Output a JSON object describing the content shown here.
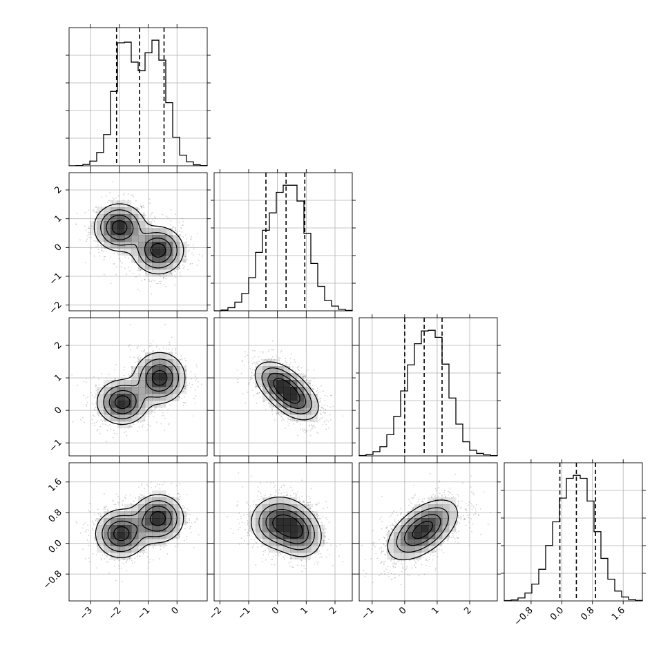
{
  "chart_data": {
    "type": "corner",
    "parameters": [
      {
        "id": "p0",
        "range": [
          -3.75,
          1.05
        ],
        "ticks": [
          "−3",
          "−2",
          "−1",
          "0"
        ],
        "tick_values": [
          -3,
          -2,
          -1,
          0
        ],
        "quantiles": [
          -2.1,
          -1.3,
          -0.45
        ],
        "hist_bins": {
          "start": -3.75,
          "width": 0.24,
          "counts": [
            1,
            4,
            20,
            70,
            200,
            470,
            1120,
            1850,
            1860,
            1560,
            1430,
            1700,
            1890,
            1590,
            950,
            430,
            160,
            60,
            15,
            3
          ]
        }
      },
      {
        "id": "p1",
        "range": [
          -2.2,
          2.6
        ],
        "ticks": [
          "−2",
          "−1",
          "0",
          "1",
          "2"
        ],
        "tick_values": [
          -2,
          -1,
          0,
          1,
          2
        ],
        "quantiles": [
          -0.4,
          0.3,
          0.95
        ],
        "hist_bins": {
          "start": -2.2,
          "width": 0.24,
          "counts": [
            0,
            10,
            40,
            110,
            220,
            420,
            740,
            1020,
            1240,
            1500,
            1590,
            1590,
            1390,
            980,
            600,
            310,
            130,
            60,
            20,
            5
          ]
        }
      },
      {
        "id": "p2",
        "range": [
          -1.4,
          2.85
        ],
        "ticks": [
          "−1",
          "0",
          "1",
          "2"
        ],
        "tick_values": [
          -1,
          0,
          1,
          2
        ],
        "quantiles": [
          0.0,
          0.6,
          1.15
        ],
        "hist_bins": {
          "start": -1.4,
          "width": 0.2125,
          "counts": [
            5,
            20,
            60,
            130,
            300,
            560,
            920,
            1290,
            1590,
            1770,
            1780,
            1680,
            1300,
            820,
            450,
            200,
            80,
            35,
            15,
            3
          ]
        }
      },
      {
        "id": "p3",
        "range": [
          -1.5,
          2.1
        ],
        "ticks": [
          "−0.8",
          "0.0",
          "0.8",
          "1.6"
        ],
        "tick_values": [
          -0.8,
          0.0,
          0.8,
          1.6
        ],
        "quantiles": [
          -0.05,
          0.38,
          0.88
        ],
        "hist_bins": {
          "start": -1.5,
          "width": 0.18,
          "counts": [
            3,
            10,
            30,
            80,
            170,
            320,
            560,
            800,
            1040,
            1240,
            1270,
            1240,
            1010,
            700,
            430,
            220,
            100,
            40,
            15,
            5
          ]
        }
      }
    ],
    "pairs": [
      {
        "x": "p0",
        "y": "p1",
        "modes": [
          {
            "center": [
              -2.0,
              0.7
            ],
            "sd": [
              0.45,
              0.42
            ],
            "corr": 0.0
          },
          {
            "center": [
              -0.65,
              -0.1
            ],
            "sd": [
              0.45,
              0.42
            ],
            "corr": 0.0
          }
        ]
      },
      {
        "x": "p0",
        "y": "p2",
        "modes": [
          {
            "center": [
              -1.9,
              0.25
            ],
            "sd": [
              0.45,
              0.35
            ],
            "corr": 0.0
          },
          {
            "center": [
              -0.6,
              1.0
            ],
            "sd": [
              0.45,
              0.4
            ],
            "corr": 0.0
          }
        ]
      },
      {
        "x": "p1",
        "y": "p2",
        "modes": [
          {
            "center": [
              0.05,
              0.85
            ],
            "sd": [
              0.45,
              0.35
            ],
            "corr": -0.4
          },
          {
            "center": [
              0.6,
              0.35
            ],
            "sd": [
              0.45,
              0.35
            ],
            "corr": -0.4
          }
        ]
      },
      {
        "x": "p0",
        "y": "p3",
        "modes": [
          {
            "center": [
              -1.95,
              0.25
            ],
            "sd": [
              0.45,
              0.32
            ],
            "corr": 0.0
          },
          {
            "center": [
              -0.65,
              0.65
            ],
            "sd": [
              0.45,
              0.32
            ],
            "corr": 0.0
          }
        ]
      },
      {
        "x": "p1",
        "y": "p3",
        "modes": [
          {
            "center": [
              0.0,
              0.55
            ],
            "sd": [
              0.5,
              0.35
            ],
            "corr": 0.0
          },
          {
            "center": [
              0.7,
              0.3
            ],
            "sd": [
              0.45,
              0.35
            ],
            "corr": -0.2
          }
        ]
      },
      {
        "x": "p2",
        "y": "p3",
        "modes": [
          {
            "center": [
              0.55,
              0.35
            ],
            "sd": [
              0.55,
              0.4
            ],
            "corr": 0.55
          }
        ]
      }
    ],
    "contour_levels": [
      0.118,
      0.393,
      0.675,
      0.865
    ],
    "grid": true,
    "colors": {
      "line": "#000000",
      "density": "#000000",
      "points": "#7a7a7a",
      "grid": "#b0b0b0"
    }
  }
}
